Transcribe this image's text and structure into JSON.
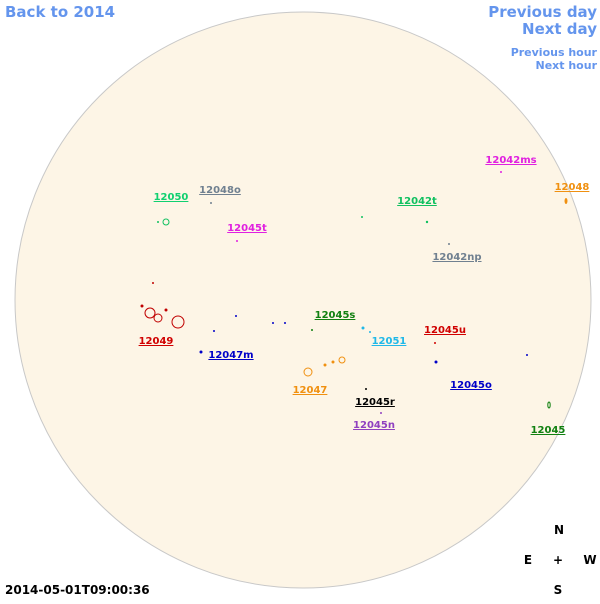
{
  "nav": {
    "back": "Back to 2014",
    "previous_day": "Previous day",
    "next_day": "Next day",
    "previous_hour": "Previous hour",
    "next_hour": "Next hour"
  },
  "regions": [
    {
      "label": "12042ms",
      "color": "#e020e0"
    },
    {
      "label": "12048",
      "color": "#f09010"
    },
    {
      "label": "12050",
      "color": "#10d070"
    },
    {
      "label": "12048o",
      "color": "#708090"
    },
    {
      "label": "12042t",
      "color": "#10c060"
    },
    {
      "label": "12045t",
      "color": "#e020e0"
    },
    {
      "label": "12042np",
      "color": "#708090"
    },
    {
      "label": "12045s",
      "color": "#108010"
    },
    {
      "label": "12045u",
      "color": "#d00000"
    },
    {
      "label": "12051",
      "color": "#20b8e8"
    },
    {
      "label": "12049",
      "color": "#d00000"
    },
    {
      "label": "12047m",
      "color": "#0000c8"
    },
    {
      "label": "12047",
      "color": "#f09010"
    },
    {
      "label": "12045o",
      "color": "#0000c8"
    },
    {
      "label": "12045r",
      "color": "#000000"
    },
    {
      "label": "12045n",
      "color": "#9040c0"
    },
    {
      "label": "12045",
      "color": "#108010"
    }
  ],
  "timestamp": "2014-05-01T09:00:36",
  "compass": {
    "north": "N",
    "east": "E",
    "center": "+",
    "west": "W",
    "south": "S"
  }
}
